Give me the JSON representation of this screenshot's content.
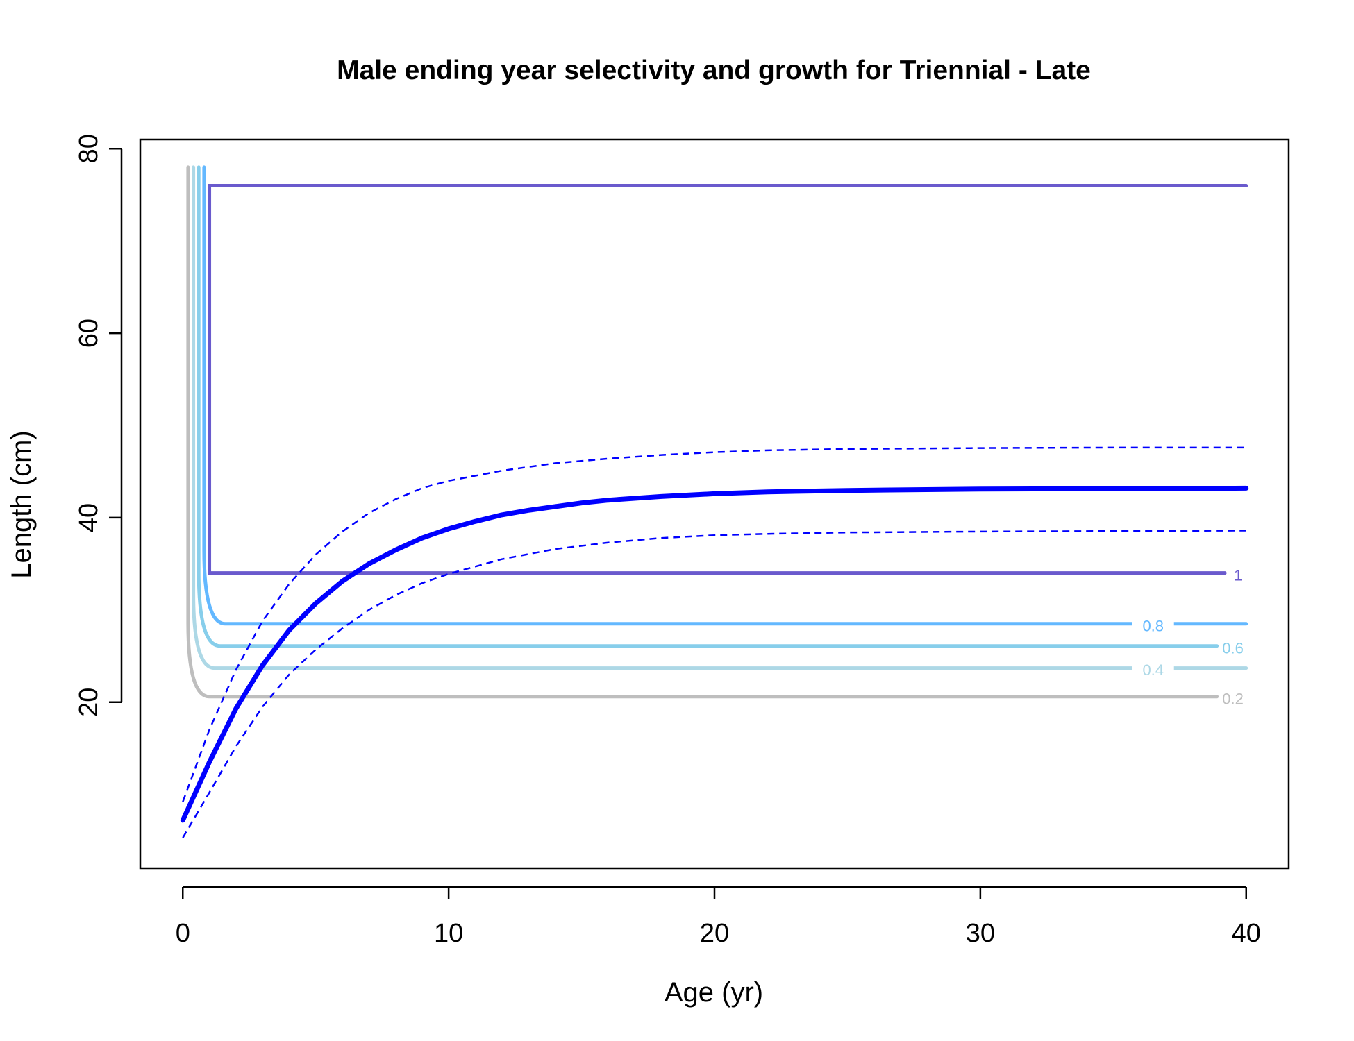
{
  "chart_data": {
    "type": "line",
    "title": "Male ending year selectivity and growth for Triennial - Late",
    "xlabel": "Age (yr)",
    "ylabel": "Length (cm)",
    "xlim": [
      -1.6,
      41.6
    ],
    "ylim": [
      2,
      81
    ],
    "xticks": [
      0,
      10,
      20,
      30,
      40
    ],
    "yticks": [
      20,
      40,
      60,
      80
    ],
    "grid": false,
    "growth": {
      "color": "#0000FF",
      "mean": {
        "x": [
          0,
          1,
          2,
          3,
          4,
          5,
          6,
          7,
          8,
          9,
          10,
          11,
          12,
          13,
          14,
          15,
          16,
          18,
          20,
          22,
          25,
          30,
          35,
          40
        ],
        "y": [
          7.2,
          13.5,
          19.3,
          24.0,
          27.8,
          30.7,
          33.1,
          35.0,
          36.5,
          37.8,
          38.8,
          39.6,
          40.3,
          40.8,
          41.2,
          41.6,
          41.9,
          42.3,
          42.6,
          42.8,
          42.95,
          43.1,
          43.15,
          43.2
        ]
      },
      "upper": {
        "x": [
          0,
          1,
          2,
          3,
          4,
          5,
          6,
          7,
          8,
          9,
          10,
          12,
          14,
          16,
          18,
          20,
          22,
          25,
          30,
          35,
          40
        ],
        "y": [
          9.2,
          17.0,
          23.5,
          28.8,
          32.8,
          36.0,
          38.5,
          40.5,
          42.0,
          43.2,
          44.0,
          45.1,
          45.9,
          46.4,
          46.8,
          47.1,
          47.3,
          47.45,
          47.55,
          47.6,
          47.6
        ]
      },
      "lower": {
        "x": [
          0,
          1,
          2,
          3,
          4,
          5,
          6,
          7,
          8,
          9,
          10,
          12,
          14,
          16,
          18,
          20,
          22,
          25,
          30,
          35,
          40
        ],
        "y": [
          5.3,
          10.2,
          15.2,
          19.5,
          23.0,
          25.7,
          28.0,
          30.0,
          31.6,
          32.9,
          33.9,
          35.5,
          36.6,
          37.3,
          37.8,
          38.1,
          38.25,
          38.4,
          38.5,
          38.55,
          38.6
        ]
      }
    },
    "selectivity_contours": [
      {
        "level": "0.2",
        "color": "#BEBEBE",
        "vertical_x": 0.2,
        "top_y": 78,
        "bottom_y": 20.6,
        "end_x": 38.9,
        "label_x": 39.5,
        "label_y": 20.4,
        "gap": false
      },
      {
        "level": "0.4",
        "color": "#ADD8E6",
        "vertical_x": 0.4,
        "top_y": 78,
        "bottom_y": 23.7,
        "end_x": 40,
        "label_x": 36.5,
        "label_y": 23.5,
        "gap": true
      },
      {
        "level": "0.6",
        "color": "#87CEEB",
        "vertical_x": 0.6,
        "top_y": 78,
        "bottom_y": 26.1,
        "end_x": 38.9,
        "label_x": 39.5,
        "label_y": 25.9,
        "gap": false
      },
      {
        "level": "0.8",
        "color": "#63B8FF",
        "vertical_x": 0.8,
        "top_y": 78,
        "bottom_y": 28.5,
        "end_x": 40,
        "label_x": 36.5,
        "label_y": 28.3,
        "gap": true
      }
    ],
    "selectivity_box": {
      "level": "1",
      "color": "#6A5ACD",
      "x_left": 1.0,
      "x_right": 40,
      "top_y": 76,
      "bottom_y": 34,
      "bottom_end_x": 39.2,
      "label_x": 39.7,
      "label_y": 33.8
    }
  }
}
